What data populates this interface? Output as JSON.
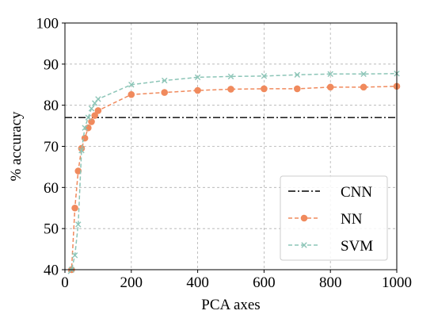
{
  "chart_data": {
    "type": "line",
    "xlabel": "PCA axes",
    "ylabel": "% accuracy",
    "xlim": [
      0,
      1000
    ],
    "ylim": [
      40,
      100
    ],
    "xticks": [
      0,
      200,
      400,
      600,
      800,
      1000
    ],
    "yticks": [
      40,
      50,
      60,
      70,
      80,
      90,
      100
    ],
    "grid": true,
    "legend_position": "bottom-right",
    "cnn_baseline": 77.0,
    "series": [
      {
        "name": "CNN",
        "style": "dashdot",
        "color": "#000000",
        "x": [
          0,
          1000
        ],
        "values": [
          77.0,
          77.0
        ]
      },
      {
        "name": "NN",
        "style": "dashed-circle",
        "color": "#f08a5d",
        "x": [
          10,
          20,
          30,
          40,
          50,
          60,
          70,
          80,
          90,
          100,
          200,
          300,
          400,
          500,
          600,
          700,
          800,
          900,
          1000
        ],
        "values": [
          39.5,
          40.0,
          55.0,
          64.0,
          69.5,
          72.0,
          74.5,
          76.0,
          77.5,
          78.7,
          82.6,
          83.1,
          83.6,
          83.9,
          84.0,
          84.0,
          84.4,
          84.4,
          84.6
        ]
      },
      {
        "name": "SVM",
        "style": "dashed-x",
        "color": "#8cc5b7",
        "x": [
          10,
          20,
          30,
          40,
          50,
          60,
          70,
          80,
          90,
          100,
          200,
          300,
          400,
          500,
          600,
          700,
          800,
          900,
          1000
        ],
        "values": [
          39.0,
          40.0,
          43.5,
          51.0,
          69.0,
          74.5,
          77.0,
          79.2,
          80.5,
          81.5,
          85.0,
          86.0,
          86.8,
          87.0,
          87.1,
          87.4,
          87.6,
          87.6,
          87.7
        ]
      }
    ]
  }
}
